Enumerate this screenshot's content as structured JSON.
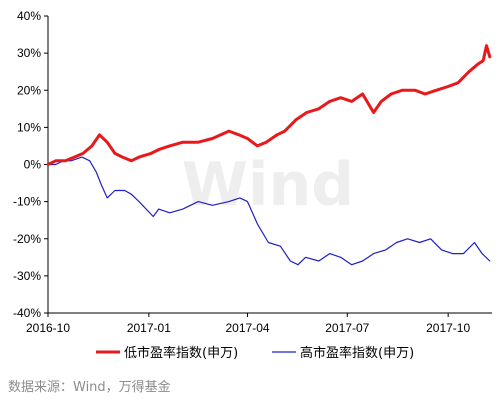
{
  "chart_data": {
    "type": "line",
    "title": "",
    "xlabel": "",
    "ylabel": "",
    "y_unit": "%",
    "ylim": [
      -40,
      40
    ],
    "y_ticks": [
      40,
      30,
      20,
      10,
      0,
      -10,
      -20,
      -30,
      -40
    ],
    "x_range": [
      "2016-10-01",
      "2017-11-10"
    ],
    "x_ticks": [
      "2016-10",
      "2017-01",
      "2017-04",
      "2017-07",
      "2017-10"
    ],
    "grid": false,
    "legend_position": "bottom",
    "watermark": "Wind",
    "series": [
      {
        "name": "低市盈率指数(申万)",
        "color": "#e8191b",
        "line_width": 3,
        "points": [
          [
            "2016-10-01",
            0
          ],
          [
            "2016-10-08",
            1
          ],
          [
            "2016-10-17",
            1
          ],
          [
            "2016-10-25",
            2
          ],
          [
            "2016-11-02",
            3
          ],
          [
            "2016-11-10",
            5
          ],
          [
            "2016-11-17",
            8
          ],
          [
            "2016-11-24",
            6
          ],
          [
            "2016-12-01",
            3
          ],
          [
            "2016-12-08",
            2
          ],
          [
            "2016-12-16",
            1
          ],
          [
            "2016-12-23",
            2
          ],
          [
            "2017-01-03",
            3
          ],
          [
            "2017-01-10",
            4
          ],
          [
            "2017-01-20",
            5
          ],
          [
            "2017-02-01",
            6
          ],
          [
            "2017-02-15",
            6
          ],
          [
            "2017-02-28",
            7
          ],
          [
            "2017-03-15",
            9
          ],
          [
            "2017-03-24",
            8
          ],
          [
            "2017-04-01",
            7
          ],
          [
            "2017-04-10",
            5
          ],
          [
            "2017-04-18",
            6
          ],
          [
            "2017-04-28",
            8
          ],
          [
            "2017-05-05",
            9
          ],
          [
            "2017-05-15",
            12
          ],
          [
            "2017-05-25",
            14
          ],
          [
            "2017-06-05",
            15
          ],
          [
            "2017-06-15",
            17
          ],
          [
            "2017-06-25",
            18
          ],
          [
            "2017-07-05",
            17
          ],
          [
            "2017-07-15",
            19
          ],
          [
            "2017-07-25",
            14
          ],
          [
            "2017-08-01",
            17
          ],
          [
            "2017-08-10",
            19
          ],
          [
            "2017-08-20",
            20
          ],
          [
            "2017-09-01",
            20
          ],
          [
            "2017-09-10",
            19
          ],
          [
            "2017-09-20",
            20
          ],
          [
            "2017-10-01",
            21
          ],
          [
            "2017-10-10",
            22
          ],
          [
            "2017-10-20",
            25
          ],
          [
            "2017-10-28",
            27
          ],
          [
            "2017-11-02",
            28
          ],
          [
            "2017-11-05",
            32
          ],
          [
            "2017-11-08",
            29
          ]
        ]
      },
      {
        "name": "高市盈率指数(申万)",
        "color": "#1f1fc8",
        "line_width": 1.2,
        "points": [
          [
            "2016-10-01",
            0
          ],
          [
            "2016-10-08",
            0
          ],
          [
            "2016-10-15",
            1
          ],
          [
            "2016-10-22",
            1
          ],
          [
            "2016-11-01",
            2
          ],
          [
            "2016-11-08",
            1
          ],
          [
            "2016-11-14",
            -2
          ],
          [
            "2016-11-18",
            -5
          ],
          [
            "2016-11-24",
            -9
          ],
          [
            "2016-12-01",
            -7
          ],
          [
            "2016-12-10",
            -7
          ],
          [
            "2016-12-16",
            -8
          ],
          [
            "2016-12-23",
            -10
          ],
          [
            "2017-01-05",
            -14
          ],
          [
            "2017-01-10",
            -12
          ],
          [
            "2017-01-20",
            -13
          ],
          [
            "2017-02-01",
            -12
          ],
          [
            "2017-02-15",
            -10
          ],
          [
            "2017-02-28",
            -11
          ],
          [
            "2017-03-15",
            -10
          ],
          [
            "2017-03-25",
            -9
          ],
          [
            "2017-04-01",
            -10
          ],
          [
            "2017-04-10",
            -16
          ],
          [
            "2017-04-20",
            -21
          ],
          [
            "2017-05-01",
            -22
          ],
          [
            "2017-05-10",
            -26
          ],
          [
            "2017-05-17",
            -27
          ],
          [
            "2017-05-24",
            -25
          ],
          [
            "2017-06-05",
            -26
          ],
          [
            "2017-06-15",
            -24
          ],
          [
            "2017-06-25",
            -25
          ],
          [
            "2017-07-05",
            -27
          ],
          [
            "2017-07-15",
            -26
          ],
          [
            "2017-07-25",
            -24
          ],
          [
            "2017-08-05",
            -23
          ],
          [
            "2017-08-15",
            -21
          ],
          [
            "2017-08-25",
            -20
          ],
          [
            "2017-09-05",
            -21
          ],
          [
            "2017-09-15",
            -20
          ],
          [
            "2017-09-25",
            -23
          ],
          [
            "2017-10-05",
            -24
          ],
          [
            "2017-10-15",
            -24
          ],
          [
            "2017-10-25",
            -21
          ],
          [
            "2017-11-01",
            -24
          ],
          [
            "2017-11-08",
            -26
          ]
        ]
      }
    ]
  },
  "source": "数据来源：Wind，万得基金"
}
